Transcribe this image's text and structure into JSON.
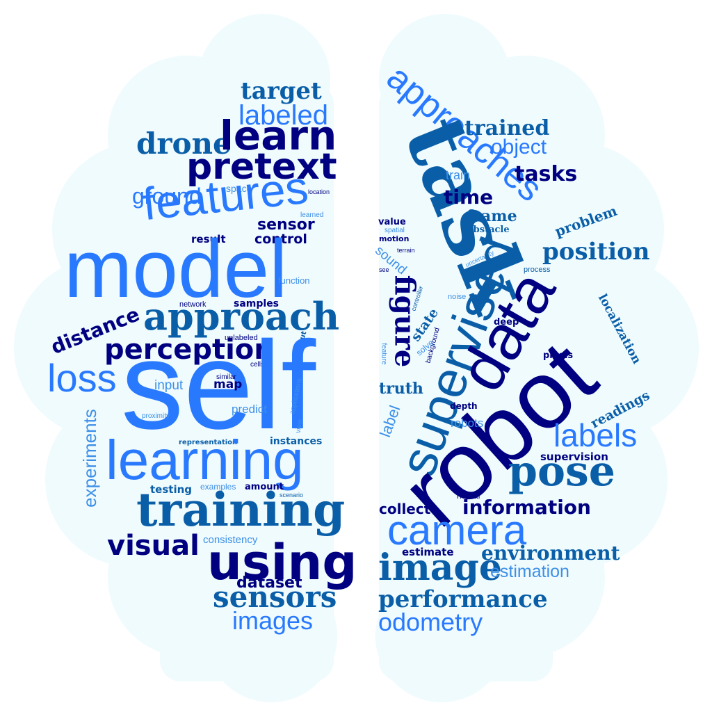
{
  "colors": {
    "background": "#ffffff",
    "brain_fill": "#effbfd",
    "bright_blue": "#2979ff",
    "medium_blue": "#1565c0",
    "steel_blue": "#0a5ea8",
    "navy": "#000080",
    "light_blue": "#3d8fe8"
  },
  "left_words": {
    "target": "target",
    "labeled": "labeled",
    "drone": "drone",
    "learn": "learn",
    "pretext": "pretext",
    "ground": "ground",
    "space": "space",
    "location": "location",
    "features": "features",
    "learned": "learned",
    "sensor": "sensor",
    "result": "result",
    "control": "control",
    "model": "model",
    "function": "function",
    "network": "network",
    "samples": "samples",
    "approach": "approach",
    "distance": "distance",
    "unlabeled": "unlabeled",
    "perception": "perception",
    "output": "output",
    "cells": "cells",
    "loss": "loss",
    "self": "self",
    "input": "input",
    "similar": "similar",
    "map": "map",
    "applications": "applications",
    "proximity": "proximity",
    "predict": "predict",
    "view": "view",
    "experiments": "experiments",
    "representation": "representation",
    "instances": "instances",
    "learning": "learning",
    "examples": "examples",
    "amount": "amount",
    "testing": "testing",
    "scenario": "scenario",
    "training": "training",
    "consistency": "consistency",
    "visual": "visual",
    "using": "using",
    "dataset": "dataset",
    "sensors": "sensors",
    "images": "images"
  },
  "right_words": {
    "approaches": "approaches",
    "task": "task",
    "trained": "trained",
    "object": "object",
    "train": "train",
    "tasks": "tasks",
    "time": "time",
    "frame": "frame",
    "value": "value",
    "spatial": "spatial",
    "obstacle": "obstacle",
    "problem": "problem",
    "motion": "motion",
    "terrain": "terrain",
    "position": "position",
    "sound": "sound",
    "uncertainty": "uncertainty",
    "see": "see",
    "process": "process",
    "supervised": "supervised",
    "data": "data",
    "figure": "figure",
    "controller": "controller",
    "noise": "noise",
    "localization": "localization",
    "state": "state",
    "deep": "deep",
    "background": "background",
    "solve": "solve",
    "feature": "feature",
    "pixels": "pixels",
    "truth": "truth",
    "robot": "robot",
    "label": "label",
    "depth": "depth",
    "readings": "readings",
    "robots": "robots",
    "labels": "labels",
    "supervision": "supervision",
    "pose": "pose",
    "neural": "neural",
    "collect": "collect",
    "information": "information",
    "camera": "camera",
    "estimate": "estimate",
    "environment": "environment",
    "image": "image",
    "estimation": "estimation",
    "performance": "performance",
    "odometry": "odometry"
  }
}
